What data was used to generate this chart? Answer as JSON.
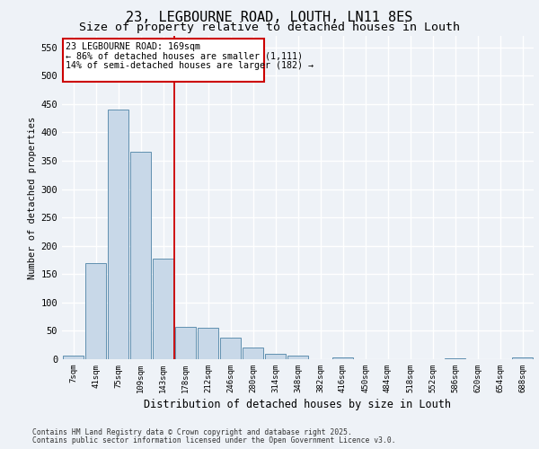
{
  "title_line1": "23, LEGBOURNE ROAD, LOUTH, LN11 8ES",
  "title_line2": "Size of property relative to detached houses in Louth",
  "xlabel": "Distribution of detached houses by size in Louth",
  "ylabel": "Number of detached properties",
  "categories": [
    "7sqm",
    "41sqm",
    "75sqm",
    "109sqm",
    "143sqm",
    "178sqm",
    "212sqm",
    "246sqm",
    "280sqm",
    "314sqm",
    "348sqm",
    "382sqm",
    "416sqm",
    "450sqm",
    "484sqm",
    "518sqm",
    "552sqm",
    "586sqm",
    "620sqm",
    "654sqm",
    "688sqm"
  ],
  "values": [
    7,
    170,
    440,
    365,
    178,
    57,
    55,
    38,
    20,
    10,
    6,
    0,
    3,
    0,
    0,
    0,
    0,
    2,
    0,
    0,
    3
  ],
  "bar_color": "#c8d8e8",
  "bar_edge_color": "#6090b0",
  "ylim": [
    0,
    570
  ],
  "yticks": [
    0,
    50,
    100,
    150,
    200,
    250,
    300,
    350,
    400,
    450,
    500,
    550
  ],
  "background_color": "#eef2f7",
  "plot_background": "#eef2f7",
  "grid_color": "#ffffff",
  "footer_line1": "Contains HM Land Registry data © Crown copyright and database right 2025.",
  "footer_line2": "Contains public sector information licensed under the Open Government Licence v3.0.",
  "red_line_color": "#cc0000",
  "ann_line1": "23 LEGBOURNE ROAD: 169sqm",
  "ann_line2": "← 86% of detached houses are smaller (1,111)",
  "ann_line3": "14% of semi-detached houses are larger (182) →",
  "annotation_fontsize": 7.2,
  "title_fontsize1": 11,
  "title_fontsize2": 9.5,
  "vline_x": 4.5
}
